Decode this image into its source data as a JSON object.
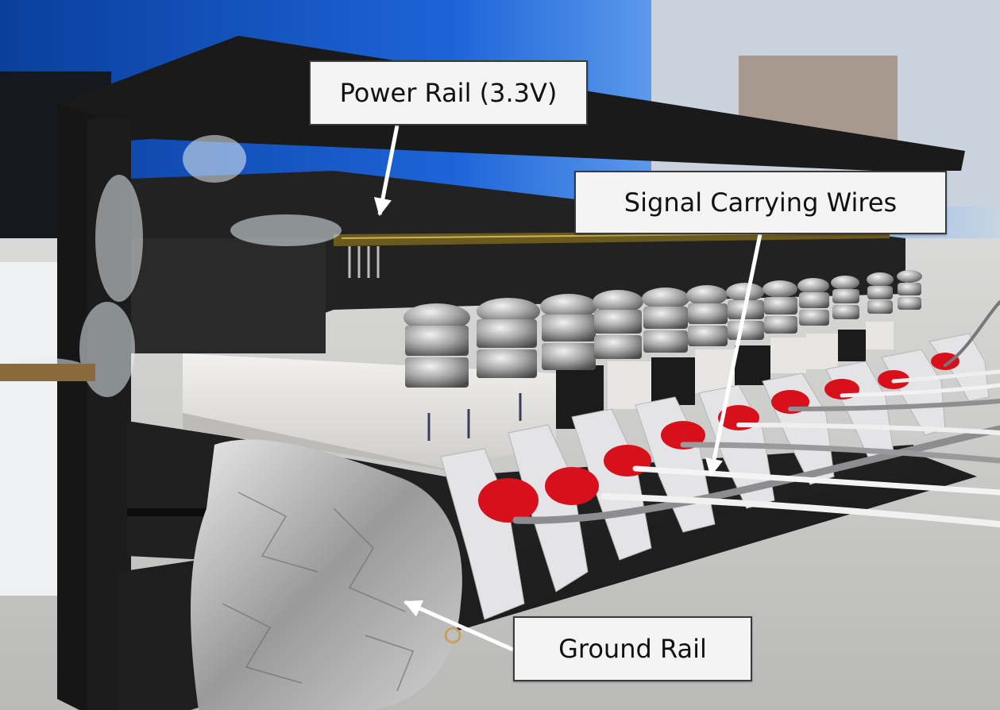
{
  "photo": {
    "subject": "3D-printed sensor board enclosure with wiring"
  },
  "callouts": {
    "power_rail": "Power Rail (3.3V)",
    "signal_wires": "Signal Carrying Wires",
    "ground_rail": "Ground Rail"
  },
  "colors": {
    "callout_bg": "#f4f4f4",
    "callout_border": "#3a3a3a",
    "arrow": "#ffffff",
    "enclosure": "#111111",
    "wire_insulation_red": "#d8101c"
  }
}
